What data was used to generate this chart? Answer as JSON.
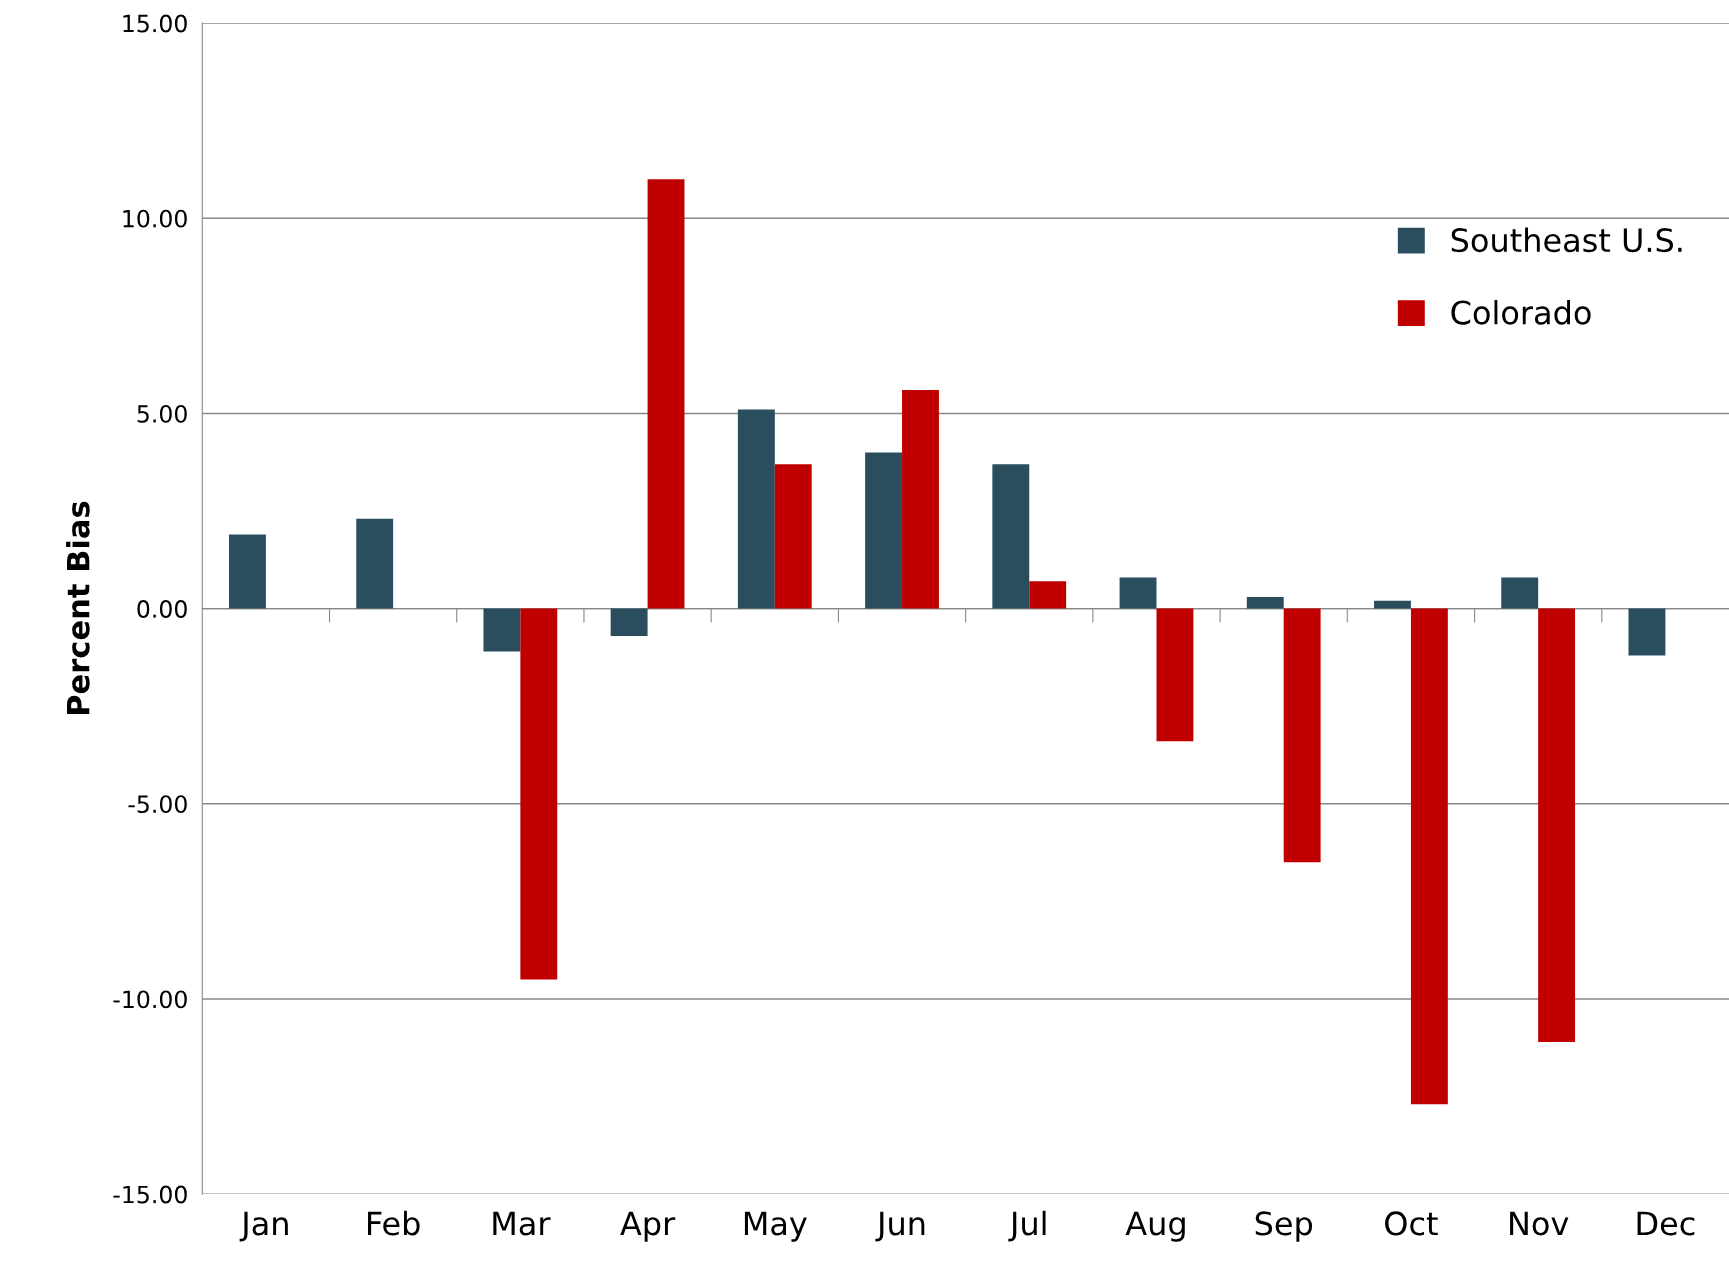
{
  "chart_data": {
    "type": "bar",
    "ylabel": "Percent Bias",
    "categories": [
      "Jan",
      "Feb",
      "Mar",
      "Apr",
      "May",
      "Jun",
      "Jul",
      "Aug",
      "Sep",
      "Oct",
      "Nov",
      "Dec"
    ],
    "series": [
      {
        "name": "Southeast U.S.",
        "color": "#2a4e5e",
        "values": [
          1.9,
          2.3,
          -1.1,
          -0.7,
          5.1,
          4.0,
          3.7,
          0.8,
          0.3,
          0.2,
          0.8,
          -1.2
        ]
      },
      {
        "name": "Colorado",
        "color": "#c00000",
        "values": [
          null,
          null,
          -9.5,
          11.0,
          3.7,
          5.6,
          0.7,
          -3.4,
          -6.5,
          -12.7,
          -11.1,
          null
        ]
      }
    ],
    "ylim": [
      -15,
      15
    ],
    "yticks": [
      {
        "value": -15,
        "label": "-15.00"
      },
      {
        "value": -10,
        "label": "-10.00"
      },
      {
        "value": -5,
        "label": "-5.00"
      },
      {
        "value": 0,
        "label": "0.00"
      },
      {
        "value": 5,
        "label": "5.00"
      },
      {
        "value": 10,
        "label": "10.00"
      },
      {
        "value": 15,
        "label": "15.00"
      }
    ],
    "grid": "y",
    "legend": "top right"
  }
}
